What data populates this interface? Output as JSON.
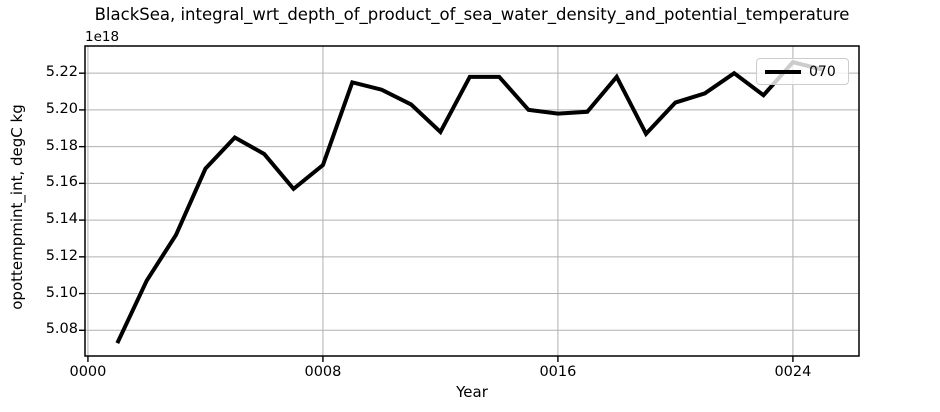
{
  "chart_data": {
    "type": "line",
    "title": "BlackSea, integral_wrt_depth_of_product_of_sea_water_density_and_potential_temperature",
    "xlabel": "Year",
    "ylabel": "opottempmint_int, degC kg",
    "offset_text": "1e18",
    "value_scale_note": "y values are in units of 1e18 (degC kg)",
    "x": [
      1,
      2,
      3,
      4,
      5,
      6,
      7,
      8,
      9,
      10,
      11,
      12,
      13,
      14,
      15,
      16,
      17,
      18,
      19,
      20,
      21,
      22,
      23,
      24,
      25
    ],
    "series": [
      {
        "name": "070",
        "color": "#000000",
        "values": [
          5.073,
          5.107,
          5.132,
          5.168,
          5.185,
          5.176,
          5.157,
          5.17,
          5.215,
          5.211,
          5.203,
          5.188,
          5.218,
          5.218,
          5.2,
          5.198,
          5.199,
          5.218,
          5.187,
          5.204,
          5.209,
          5.22,
          5.208,
          5.226,
          5.222
        ]
      }
    ],
    "xlim": [
      -0.1,
      26.25
    ],
    "ylim": [
      5.066,
      5.2348
    ],
    "xticks": [
      {
        "value": 0,
        "label": "0000"
      },
      {
        "value": 8,
        "label": "0008"
      },
      {
        "value": 16,
        "label": "0016"
      },
      {
        "value": 24,
        "label": "0024"
      }
    ],
    "yticks": [
      {
        "value": 5.08,
        "label": "5.08"
      },
      {
        "value": 5.1,
        "label": "5.10"
      },
      {
        "value": 5.12,
        "label": "5.12"
      },
      {
        "value": 5.14,
        "label": "5.14"
      },
      {
        "value": 5.16,
        "label": "5.16"
      },
      {
        "value": 5.18,
        "label": "5.18"
      },
      {
        "value": 5.2,
        "label": "5.20"
      },
      {
        "value": 5.22,
        "label": "5.22"
      }
    ],
    "grid": true,
    "legend_position": "upper right",
    "legend_entries": [
      {
        "label": "070"
      }
    ],
    "colors": {
      "line": "#000000",
      "grid": "#b0b0b0",
      "spine": "#000000",
      "background": "#ffffff",
      "legend_border": "#cccccc"
    }
  }
}
